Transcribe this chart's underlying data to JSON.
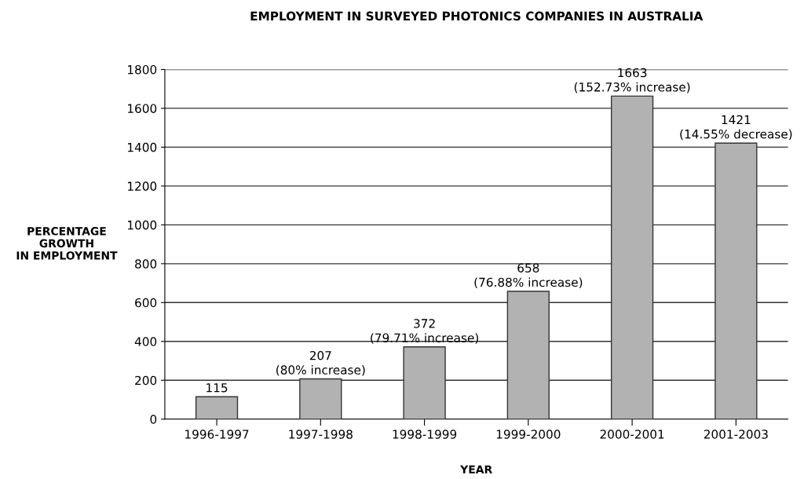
{
  "chart_data": {
    "type": "bar",
    "title": "EMPLOYMENT IN SURVEYED PHOTONICS COMPANIES IN AUSTRALIA",
    "xlabel": "YEAR",
    "ylabel": "PERCENTAGE\nGROWTH\nIN EMPLOYMENT",
    "categories": [
      "1996-1997",
      "1997-1998",
      "1998-1999",
      "1999-2000",
      "2000-2001",
      "2001-2003"
    ],
    "values": [
      115,
      207,
      372,
      658,
      1663,
      1421
    ],
    "value_labels": [
      "115",
      "207\n(80% increase)",
      "372\n(79.71% increase)",
      "658\n(76.88% increase)",
      "1663\n(152.73% increase)",
      "1421\n(14.55% decrease)"
    ],
    "color": "#b2b2b2",
    "ylim": [
      0,
      1800
    ],
    "yticks": [
      0,
      200,
      400,
      600,
      800,
      1000,
      1200,
      1400,
      1600,
      1800
    ],
    "grid": "y"
  }
}
